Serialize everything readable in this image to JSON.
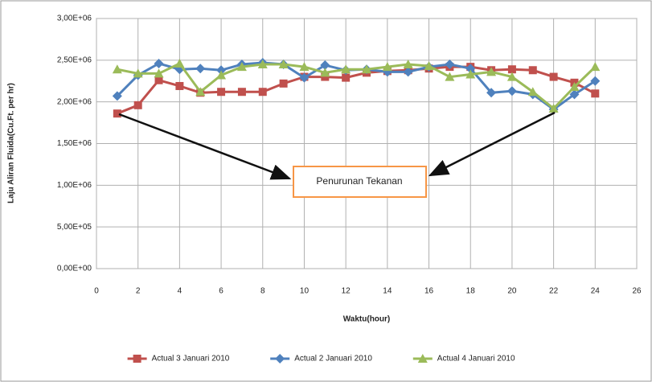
{
  "chart_data": {
    "type": "line",
    "ylabel": "Laju Aliran Fluida(Cu.Ft. per hr)",
    "xlabel": "Waktu(hour)",
    "annotation": "Penurunan Tekanan",
    "x": [
      1,
      2,
      3,
      4,
      5,
      6,
      7,
      8,
      9,
      10,
      11,
      12,
      13,
      14,
      15,
      16,
      17,
      18,
      19,
      20,
      21,
      22,
      23,
      24
    ],
    "series": [
      {
        "name": "Actual 3 Januari 2010",
        "color": "#c0504d",
        "marker": "square",
        "values": [
          1860000,
          1960000,
          2260000,
          2190000,
          2110000,
          2120000,
          2120000,
          2120000,
          2220000,
          2300000,
          2300000,
          2290000,
          2350000,
          2370000,
          2380000,
          2400000,
          2420000,
          2420000,
          2380000,
          2390000,
          2380000,
          2300000,
          2230000,
          2100000
        ]
      },
      {
        "name": "Actual 2 Januari 2010",
        "color": "#4f81bd",
        "marker": "diamond",
        "values": [
          2070000,
          2320000,
          2460000,
          2390000,
          2400000,
          2380000,
          2450000,
          2470000,
          2450000,
          2290000,
          2440000,
          2380000,
          2390000,
          2360000,
          2360000,
          2420000,
          2450000,
          2400000,
          2110000,
          2130000,
          2090000,
          1910000,
          2090000,
          2250000
        ]
      },
      {
        "name": "Actual 4 Januari 2010",
        "color": "#9bbb59",
        "marker": "triangle",
        "values": [
          2390000,
          2340000,
          2340000,
          2460000,
          2120000,
          2320000,
          2420000,
          2450000,
          2450000,
          2420000,
          2350000,
          2390000,
          2390000,
          2420000,
          2450000,
          2430000,
          2300000,
          2330000,
          2360000,
          2300000,
          2120000,
          1920000,
          2180000,
          2420000
        ]
      }
    ],
    "xlim": [
      0,
      26
    ],
    "xticks": [
      0,
      2,
      4,
      6,
      8,
      10,
      12,
      14,
      16,
      18,
      20,
      22,
      24,
      26
    ],
    "ylim": [
      0,
      3000000
    ],
    "yticks": [
      {
        "value": 0,
        "label": "0,00E+00"
      },
      {
        "value": 500000,
        "label": "5,00E+05"
      },
      {
        "value": 1000000,
        "label": "1,00E+06"
      },
      {
        "value": 1500000,
        "label": "1,50E+06"
      },
      {
        "value": 2000000,
        "label": "2,00E+06"
      },
      {
        "value": 2500000,
        "label": "2,50E+06"
      },
      {
        "value": 3000000,
        "label": "3,00E+06"
      }
    ],
    "grid": true,
    "legend": "bottom"
  }
}
